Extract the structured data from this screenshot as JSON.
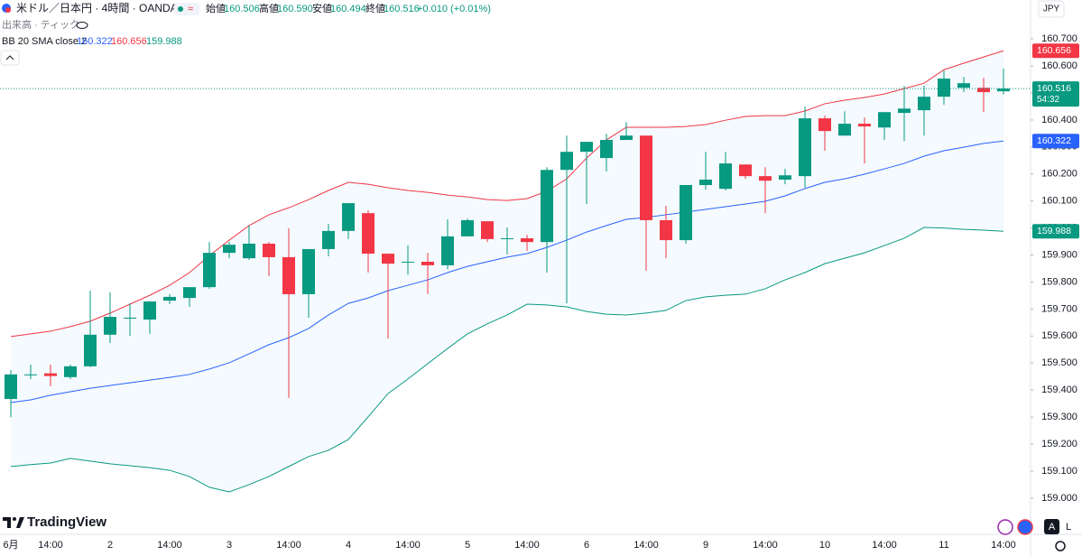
{
  "header": {
    "symbol": "米ドル／日本円 · 4時間 · OANDA",
    "ohlc": [
      {
        "label": "始値",
        "value": "160.506"
      },
      {
        "label": "高値",
        "value": "160.590"
      },
      {
        "label": "安値",
        "value": "160.494"
      },
      {
        "label": "終値",
        "value": "160.516"
      }
    ],
    "change": "+0.010 (+0.01%)",
    "volume": "出来高 · ティック",
    "indicator": "BB 20 SMA close 2",
    "currency": "JPY",
    "countdown": "54:32",
    "logo": "TradingView",
    "buttons": [
      "A",
      "L"
    ]
  },
  "chart_data": {
    "type": "candlestick",
    "categories": [
      "6月",
      null,
      "14:00",
      null,
      null,
      "2",
      null,
      null,
      "14:00",
      null,
      null,
      "3",
      null,
      null,
      "14:00",
      null,
      null,
      "4",
      null,
      null,
      "14:00",
      null,
      null,
      "5",
      null,
      null,
      "14:00",
      null,
      null,
      "6",
      null,
      null,
      "14:00",
      null,
      null,
      "9",
      null,
      null,
      "14:00",
      null,
      null,
      "10",
      null,
      null,
      "14:00",
      null,
      null,
      "11",
      null,
      null,
      "14:00"
    ],
    "open": [
      159.367,
      159.455,
      159.462,
      159.448,
      159.488,
      159.605,
      159.665,
      159.661,
      159.731,
      159.741,
      159.781,
      159.908,
      159.888,
      159.942,
      159.892,
      159.755,
      159.922,
      159.989,
      160.055,
      159.905,
      159.872,
      159.875,
      159.862,
      159.969,
      160.025,
      159.959,
      159.962,
      159.948,
      160.215,
      160.282,
      160.259,
      160.326,
      160.342,
      160.029,
      159.955,
      160.159,
      160.145,
      160.235,
      160.192,
      160.179,
      160.192,
      160.406,
      160.342,
      160.386,
      160.372,
      160.426,
      160.436,
      160.486,
      160.519,
      160.519,
      160.506
    ],
    "high": [
      159.474,
      159.494,
      159.494,
      159.494,
      159.768,
      159.762,
      159.721,
      159.728,
      159.755,
      159.781,
      159.948,
      159.948,
      160.009,
      159.948,
      159.999,
      159.922,
      160.015,
      160.092,
      160.065,
      159.905,
      159.935,
      159.908,
      160.032,
      160.035,
      160.025,
      160.002,
      159.975,
      160.225,
      160.342,
      160.319,
      160.349,
      160.392,
      160.342,
      160.082,
      160.159,
      160.282,
      160.282,
      160.235,
      160.225,
      160.219,
      160.449,
      160.416,
      160.432,
      160.409,
      160.429,
      160.526,
      160.526,
      160.583,
      160.559,
      160.556,
      160.59
    ],
    "low": [
      159.3,
      159.441,
      159.414,
      159.441,
      159.485,
      159.574,
      159.601,
      159.608,
      159.718,
      159.708,
      159.775,
      159.888,
      159.882,
      159.822,
      159.371,
      159.668,
      159.895,
      159.959,
      159.835,
      159.591,
      159.828,
      159.755,
      159.848,
      159.969,
      159.948,
      159.902,
      159.915,
      159.835,
      159.721,
      160.089,
      160.209,
      160.326,
      159.842,
      159.888,
      159.942,
      160.142,
      160.139,
      160.182,
      160.055,
      160.162,
      160.149,
      160.286,
      160.342,
      160.239,
      160.326,
      160.322,
      160.342,
      160.456,
      160.503,
      160.429,
      160.494
    ],
    "close": [
      159.458,
      159.458,
      159.452,
      159.488,
      159.605,
      159.671,
      159.668,
      159.728,
      159.745,
      159.781,
      159.908,
      159.938,
      159.942,
      159.892,
      159.755,
      159.922,
      159.989,
      160.092,
      159.905,
      159.868,
      159.875,
      159.862,
      159.969,
      160.029,
      159.959,
      159.962,
      159.948,
      160.215,
      160.282,
      160.319,
      160.326,
      160.342,
      160.029,
      159.955,
      160.159,
      160.179,
      160.239,
      160.192,
      160.175,
      160.195,
      160.406,
      160.359,
      160.386,
      160.376,
      160.429,
      160.442,
      160.486,
      160.553,
      160.536,
      160.503,
      160.516
    ],
    "up_color": "#089981",
    "down_color": "#f23645",
    "series": [
      {
        "color": "#2962ff",
        "values": [
          159.354,
          159.364,
          159.381,
          159.394,
          159.407,
          159.417,
          159.427,
          159.437,
          159.447,
          159.458,
          159.478,
          159.501,
          159.534,
          159.568,
          159.594,
          159.628,
          159.678,
          159.721,
          159.741,
          159.768,
          159.788,
          159.808,
          159.835,
          159.858,
          159.875,
          159.892,
          159.905,
          159.928,
          159.955,
          159.985,
          160.009,
          160.032,
          160.039,
          160.049,
          160.059,
          160.069,
          160.079,
          160.089,
          160.099,
          160.119,
          160.146,
          160.169,
          160.182,
          160.199,
          160.219,
          160.239,
          160.266,
          160.286,
          160.299,
          160.313,
          160.322
        ]
      },
      {
        "color": "#f23645",
        "values": [
          159.598,
          159.608,
          159.618,
          159.635,
          159.655,
          159.685,
          159.718,
          159.751,
          159.788,
          159.835,
          159.898,
          159.955,
          160.009,
          160.049,
          160.075,
          160.105,
          160.139,
          160.169,
          160.162,
          160.149,
          160.139,
          160.132,
          160.122,
          160.115,
          160.105,
          160.102,
          160.109,
          160.136,
          160.182,
          160.259,
          160.326,
          160.373,
          160.373,
          160.373,
          160.376,
          160.383,
          160.399,
          160.413,
          160.416,
          160.416,
          160.433,
          160.46,
          160.473,
          160.483,
          160.496,
          160.516,
          160.536,
          160.586,
          160.61,
          160.633,
          160.656
        ]
      },
      {
        "color": "#089981",
        "values": [
          159.117,
          159.124,
          159.13,
          159.147,
          159.137,
          159.127,
          159.12,
          159.113,
          159.103,
          159.08,
          159.04,
          159.023,
          159.05,
          159.08,
          159.117,
          159.154,
          159.177,
          159.217,
          159.301,
          159.387,
          159.441,
          159.498,
          159.554,
          159.608,
          159.645,
          159.678,
          159.718,
          159.715,
          159.708,
          159.691,
          159.681,
          159.678,
          159.685,
          159.695,
          159.731,
          159.745,
          159.751,
          159.755,
          159.775,
          159.808,
          159.835,
          159.868,
          159.888,
          159.908,
          159.935,
          159.962,
          160.002,
          160.0,
          159.995,
          159.992,
          159.988
        ]
      }
    ],
    "band_fill": "#2196f3",
    "ylim": [
      158.866,
      160.844
    ],
    "yticks": [
      {
        "value": 159,
        "label": "159.000"
      },
      {
        "value": 159.1,
        "label": "159.100"
      },
      {
        "value": 159.2,
        "label": "159.200"
      },
      {
        "value": 159.3,
        "label": "159.300"
      },
      {
        "value": 159.4,
        "label": "159.400"
      },
      {
        "value": 159.5,
        "label": "159.500"
      },
      {
        "value": 159.6,
        "label": "159.600"
      },
      {
        "value": 159.7,
        "label": "159.700"
      },
      {
        "value": 159.8,
        "label": "159.800"
      },
      {
        "value": 159.9,
        "label": "159.900"
      },
      {
        "value": 160,
        "label": "160.000"
      },
      {
        "value": 160.1,
        "label": "160.100"
      },
      {
        "value": 160.2,
        "label": "160.200"
      },
      {
        "value": 160.3,
        "label": "160.300"
      },
      {
        "value": 160.4,
        "label": "160.400"
      },
      {
        "value": 160.5,
        "label": "160.500"
      },
      {
        "value": 160.6,
        "label": "160.600"
      },
      {
        "value": 160.7,
        "label": "160.700"
      }
    ],
    "grid": false
  }
}
